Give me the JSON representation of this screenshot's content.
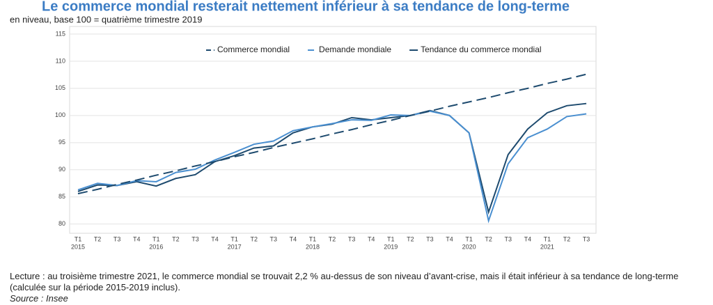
{
  "chart_data": {
    "type": "line",
    "title": "Le commerce mondial resterait nettement inférieur à sa tendance de long-terme",
    "subtitle": "en niveau, base 100 = quatrième trimestre 2019",
    "categories": [
      [
        "T1",
        "2015"
      ],
      [
        "T2"
      ],
      [
        "T3"
      ],
      [
        "T4"
      ],
      [
        "T1",
        "2016"
      ],
      [
        "T2"
      ],
      [
        "T3"
      ],
      [
        "T4"
      ],
      [
        "T1",
        "2017"
      ],
      [
        "T2"
      ],
      [
        "T3"
      ],
      [
        "T4"
      ],
      [
        "T1",
        "2018"
      ],
      [
        "T2"
      ],
      [
        "T3"
      ],
      [
        "T4"
      ],
      [
        "T1",
        "2019"
      ],
      [
        "T2"
      ],
      [
        "T3"
      ],
      [
        "T4"
      ],
      [
        "T1",
        "2020"
      ],
      [
        "T2"
      ],
      [
        "T3"
      ],
      [
        "T4"
      ],
      [
        "T1",
        "2021"
      ],
      [
        "T2"
      ],
      [
        "T3"
      ]
    ],
    "series": [
      {
        "name": "Commerce mondial",
        "color": "#1d4a6e",
        "dash": "short",
        "values": [
          86.0,
          87.2,
          87.1,
          87.8,
          87.0,
          88.4,
          89.1,
          91.5,
          92.6,
          94.0,
          94.4,
          96.8,
          97.9,
          98.4,
          99.6,
          99.2,
          99.6,
          100.0,
          100.9,
          100.0,
          96.8,
          82.2,
          92.8,
          97.5,
          100.5,
          101.8,
          102.2
        ]
      },
      {
        "name": "Demande mondiale",
        "color": "#4a8fd0",
        "dash": "medium",
        "values": [
          86.3,
          87.5,
          87.1,
          88.0,
          87.8,
          89.5,
          90.1,
          91.8,
          93.2,
          94.7,
          95.3,
          97.2,
          97.9,
          98.5,
          99.2,
          99.1,
          100.1,
          100.0,
          100.8,
          100.0,
          96.8,
          80.6,
          91.1,
          95.9,
          97.5,
          99.8,
          100.3
        ]
      },
      {
        "name": "Tendance du commerce mondial",
        "color": "#1d4a6e",
        "dash": "long",
        "values": [
          85.6,
          86.4,
          87.3,
          88.1,
          89.0,
          89.8,
          90.7,
          91.5,
          92.4,
          93.2,
          94.1,
          94.9,
          95.7,
          96.6,
          97.4,
          98.3,
          99.1,
          100.0,
          100.8,
          101.7,
          102.5,
          103.3,
          104.2,
          105.0,
          105.9,
          106.7,
          107.6
        ]
      }
    ],
    "ylim": [
      78.3,
      116.4
    ],
    "yticks": [
      80,
      85,
      90,
      95,
      100,
      105,
      110,
      115
    ],
    "grid": true,
    "notes": {
      "reading": "Lecture : au troisième trimestre 2021, le commerce mondial se trouvait 2,2 % au-dessus de son niveau d’avant-crise, mais il était inférieur à sa tendance de long-terme (calculée sur la période 2015-2019 inclus).",
      "source": "Source : Insee"
    }
  }
}
